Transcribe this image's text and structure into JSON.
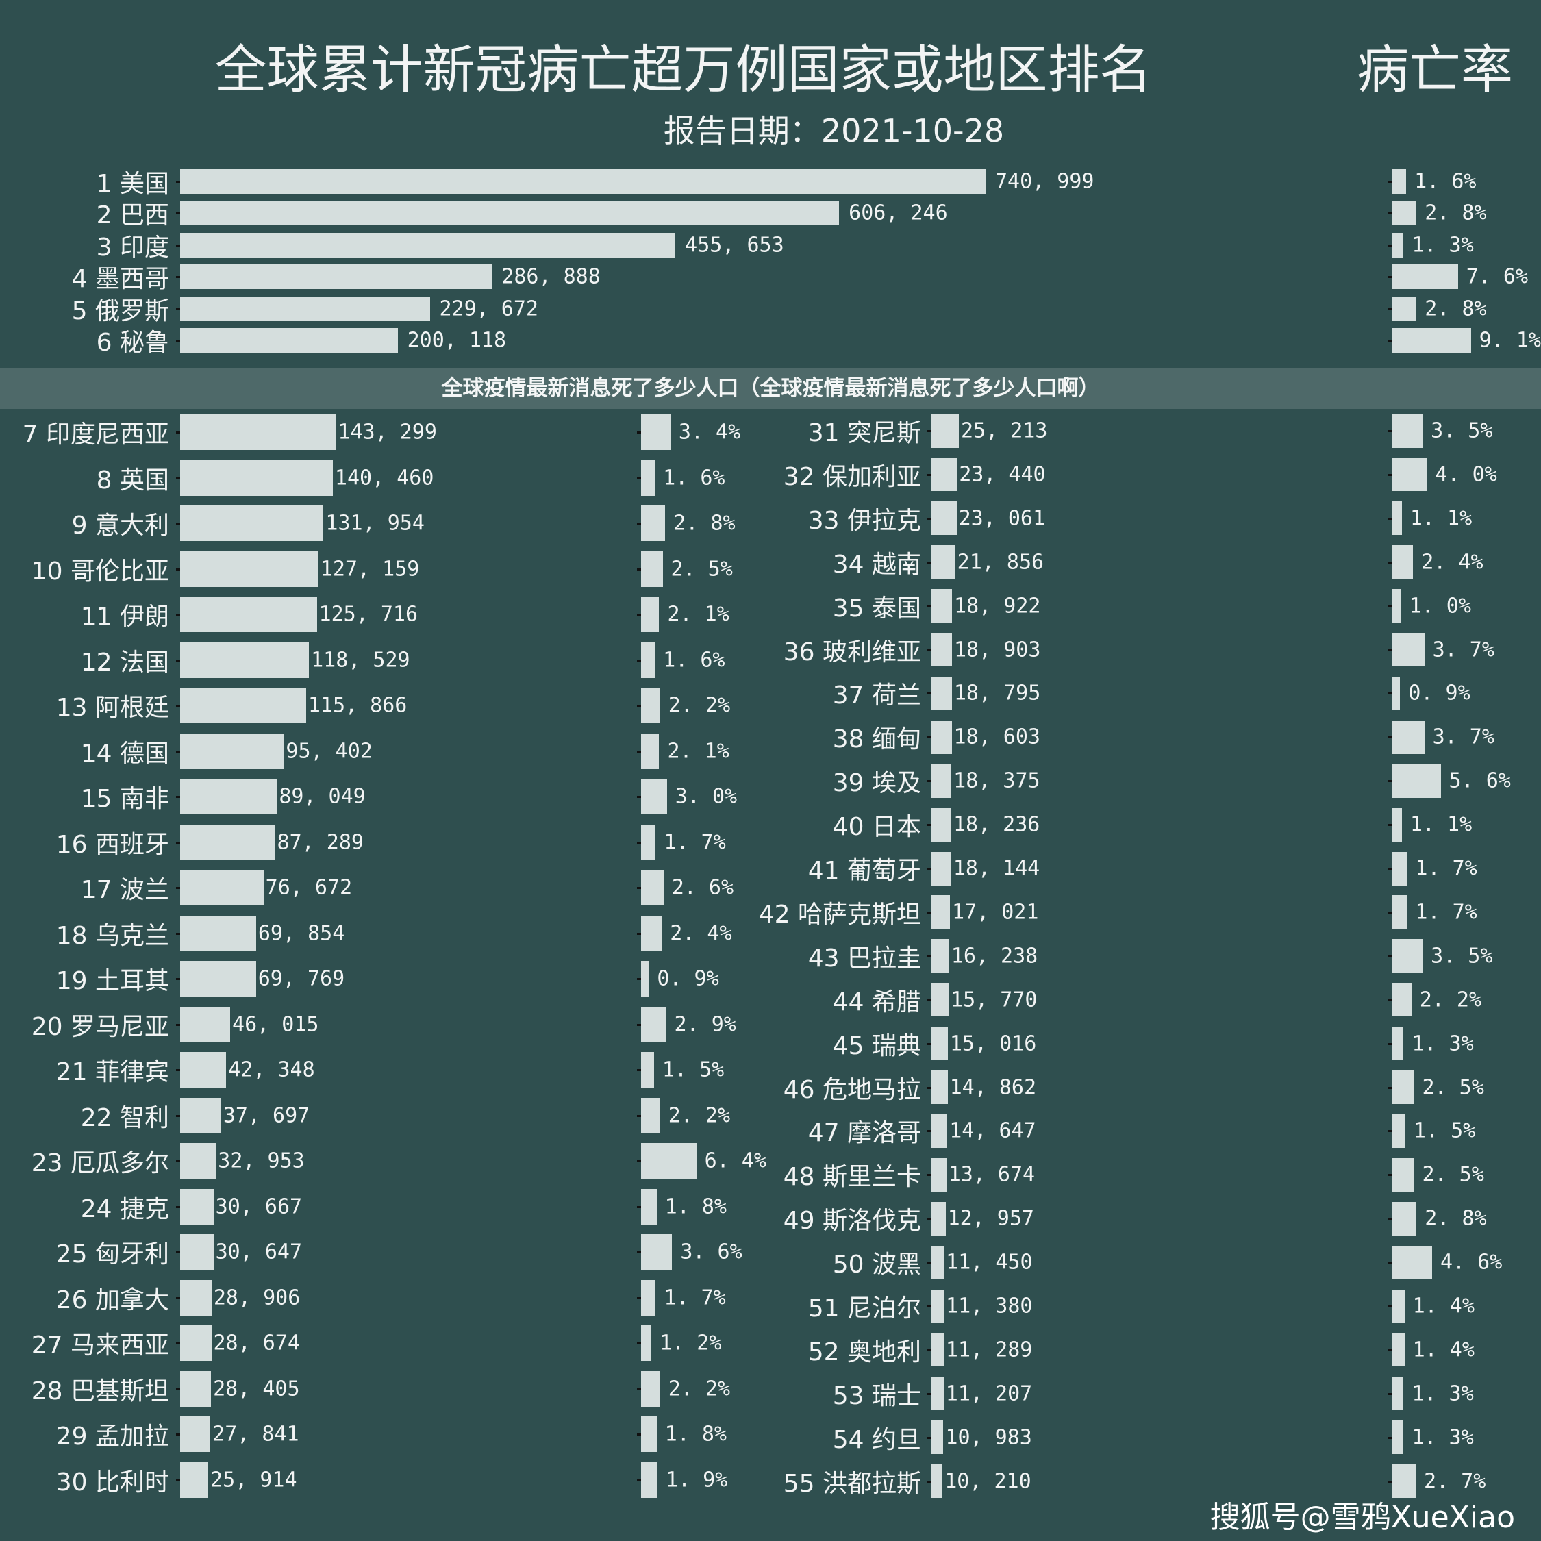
{
  "chart_data": {
    "type": "bar",
    "orientation": "horizontal",
    "title": "全球累计新冠病亡超万例国家或地区排名",
    "subtitle": "报告日期：2021-10-28",
    "rate_title": "病亡率",
    "bar_color": "#d5dedd",
    "background": "#2f4f4f",
    "grid": false,
    "rows": [
      {
        "rank": 1,
        "name": "美国",
        "deaths": 740999,
        "rate": 1.6
      },
      {
        "rank": 2,
        "name": "巴西",
        "deaths": 606246,
        "rate": 2.8
      },
      {
        "rank": 3,
        "name": "印度",
        "deaths": 455653,
        "rate": 1.3
      },
      {
        "rank": 4,
        "name": "墨西哥",
        "deaths": 286888,
        "rate": 7.6
      },
      {
        "rank": 5,
        "name": "俄罗斯",
        "deaths": 229672,
        "rate": 2.8
      },
      {
        "rank": 6,
        "name": "秘鲁",
        "deaths": 200118,
        "rate": 9.1
      },
      {
        "rank": 7,
        "name": "印度尼西亚",
        "deaths": 143299,
        "rate": 3.4
      },
      {
        "rank": 8,
        "name": "英国",
        "deaths": 140460,
        "rate": 1.6
      },
      {
        "rank": 9,
        "name": "意大利",
        "deaths": 131954,
        "rate": 2.8
      },
      {
        "rank": 10,
        "name": "哥伦比亚",
        "deaths": 127159,
        "rate": 2.5
      },
      {
        "rank": 11,
        "name": "伊朗",
        "deaths": 125716,
        "rate": 2.1
      },
      {
        "rank": 12,
        "name": "法国",
        "deaths": 118529,
        "rate": 1.6
      },
      {
        "rank": 13,
        "name": "阿根廷",
        "deaths": 115866,
        "rate": 2.2
      },
      {
        "rank": 14,
        "name": "德国",
        "deaths": 95402,
        "rate": 2.1
      },
      {
        "rank": 15,
        "name": "南非",
        "deaths": 89049,
        "rate": 3.0
      },
      {
        "rank": 16,
        "name": "西班牙",
        "deaths": 87289,
        "rate": 1.7
      },
      {
        "rank": 17,
        "name": "波兰",
        "deaths": 76672,
        "rate": 2.6
      },
      {
        "rank": 18,
        "name": "乌克兰",
        "deaths": 69854,
        "rate": 2.4
      },
      {
        "rank": 19,
        "name": "土耳其",
        "deaths": 69769,
        "rate": 0.9
      },
      {
        "rank": 20,
        "name": "罗马尼亚",
        "deaths": 46015,
        "rate": 2.9
      },
      {
        "rank": 21,
        "name": "菲律宾",
        "deaths": 42348,
        "rate": 1.5
      },
      {
        "rank": 22,
        "name": "智利",
        "deaths": 37697,
        "rate": 2.2
      },
      {
        "rank": 23,
        "name": "厄瓜多尔",
        "deaths": 32953,
        "rate": 6.4
      },
      {
        "rank": 24,
        "name": "捷克",
        "deaths": 30667,
        "rate": 1.8
      },
      {
        "rank": 25,
        "name": "匈牙利",
        "deaths": 30647,
        "rate": 3.6
      },
      {
        "rank": 26,
        "name": "加拿大",
        "deaths": 28906,
        "rate": 1.7
      },
      {
        "rank": 27,
        "name": "马来西亚",
        "deaths": 28674,
        "rate": 1.2
      },
      {
        "rank": 28,
        "name": "巴基斯坦",
        "deaths": 28405,
        "rate": 2.2
      },
      {
        "rank": 29,
        "name": "孟加拉",
        "deaths": 27841,
        "rate": 1.8
      },
      {
        "rank": 30,
        "name": "比利时",
        "deaths": 25914,
        "rate": 1.9
      },
      {
        "rank": 31,
        "name": "突尼斯",
        "deaths": 25213,
        "rate": 3.5
      },
      {
        "rank": 32,
        "name": "保加利亚",
        "deaths": 23440,
        "rate": 4.0
      },
      {
        "rank": 33,
        "name": "伊拉克",
        "deaths": 23061,
        "rate": 1.1
      },
      {
        "rank": 34,
        "name": "越南",
        "deaths": 21856,
        "rate": 2.4
      },
      {
        "rank": 35,
        "name": "泰国",
        "deaths": 18922,
        "rate": 1.0
      },
      {
        "rank": 36,
        "name": "玻利维亚",
        "deaths": 18903,
        "rate": 3.7
      },
      {
        "rank": 37,
        "name": "荷兰",
        "deaths": 18795,
        "rate": 0.9
      },
      {
        "rank": 38,
        "name": "缅甸",
        "deaths": 18603,
        "rate": 3.7
      },
      {
        "rank": 39,
        "name": "埃及",
        "deaths": 18375,
        "rate": 5.6
      },
      {
        "rank": 40,
        "name": "日本",
        "deaths": 18236,
        "rate": 1.1
      },
      {
        "rank": 41,
        "name": "葡萄牙",
        "deaths": 18144,
        "rate": 1.7
      },
      {
        "rank": 42,
        "name": "哈萨克斯坦",
        "deaths": 17021,
        "rate": 1.7
      },
      {
        "rank": 43,
        "name": "巴拉圭",
        "deaths": 16238,
        "rate": 3.5
      },
      {
        "rank": 44,
        "name": "希腊",
        "deaths": 15770,
        "rate": 2.2
      },
      {
        "rank": 45,
        "name": "瑞典",
        "deaths": 15016,
        "rate": 1.3
      },
      {
        "rank": 46,
        "name": "危地马拉",
        "deaths": 14862,
        "rate": 2.5
      },
      {
        "rank": 47,
        "name": "摩洛哥",
        "deaths": 14647,
        "rate": 1.5
      },
      {
        "rank": 48,
        "name": "斯里兰卡",
        "deaths": 13674,
        "rate": 2.5
      },
      {
        "rank": 49,
        "name": "斯洛伐克",
        "deaths": 12957,
        "rate": 2.8
      },
      {
        "rank": 50,
        "name": "波黑",
        "deaths": 11450,
        "rate": 4.6
      },
      {
        "rank": 51,
        "name": "尼泊尔",
        "deaths": 11380,
        "rate": 1.4
      },
      {
        "rank": 52,
        "name": "奥地利",
        "deaths": 11289,
        "rate": 1.4
      },
      {
        "rank": 53,
        "name": "瑞士",
        "deaths": 11207,
        "rate": 1.3
      },
      {
        "rank": 54,
        "name": "约旦",
        "deaths": 10983,
        "rate": 1.3
      },
      {
        "rank": 55,
        "name": "洪都拉斯",
        "deaths": 10210,
        "rate": 2.7
      }
    ]
  },
  "overlay_banner": "全球疫情最新消息死了多少人口（全球疫情最新消息死了多少人口啊）",
  "watermark": "搜狐号@雪鸦XueXiao"
}
